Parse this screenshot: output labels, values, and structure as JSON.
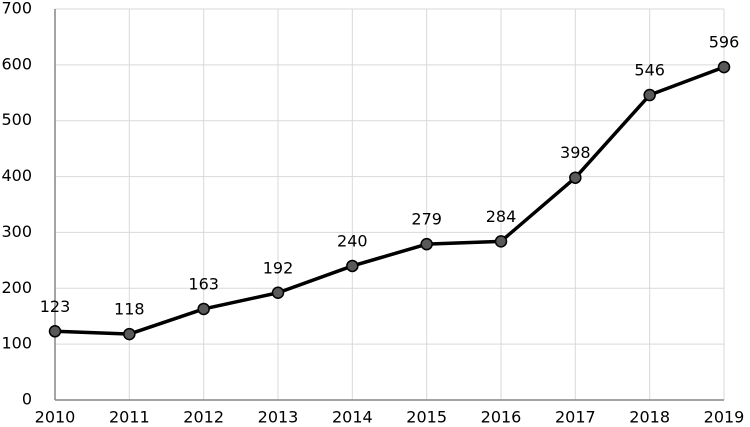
{
  "chart_data": {
    "type": "line",
    "x": [
      2010,
      2011,
      2012,
      2013,
      2014,
      2015,
      2016,
      2017,
      2018,
      2019
    ],
    "values": [
      123,
      118,
      163,
      192,
      240,
      279,
      284,
      398,
      546,
      596
    ],
    "color": "#000000",
    "marker_color": "#595959",
    "xlim": [
      2010,
      2019
    ],
    "xticks": [
      2010,
      2011,
      2012,
      2013,
      2014,
      2015,
      2016,
      2017,
      2018,
      2019
    ],
    "ylim": [
      0,
      700
    ],
    "yticks": [
      0,
      100,
      200,
      300,
      400,
      500,
      600,
      700
    ],
    "grid": true
  }
}
